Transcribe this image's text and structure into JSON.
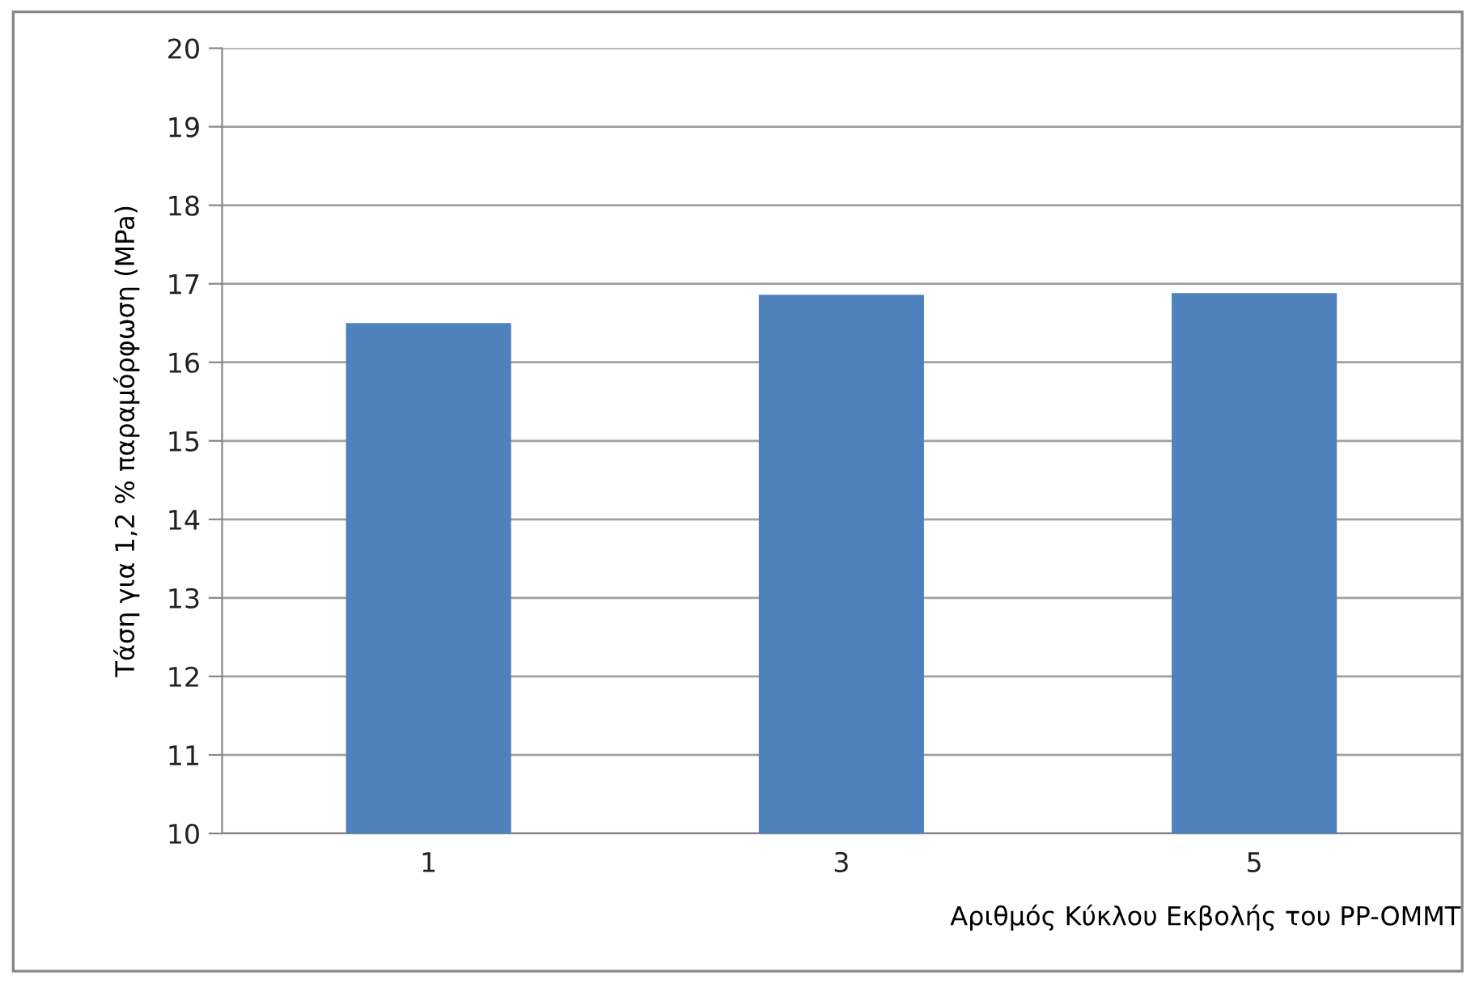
{
  "chart_data": {
    "type": "bar",
    "xlabel": "Αριθμός Κύκλου Εκβολής του PP-OMMT",
    "ylabel": "Τάση για 1,2 % παραμόρφωση (MPa)",
    "categories": [
      "1",
      "3",
      "5"
    ],
    "values": [
      16.5,
      16.86,
      16.88
    ],
    "color": "#4f81bd",
    "ylim": [
      10,
      20
    ],
    "yticks": [
      10,
      11,
      12,
      13,
      14,
      15,
      16,
      17,
      18,
      19,
      20
    ],
    "grid": "y",
    "legend": false
  }
}
